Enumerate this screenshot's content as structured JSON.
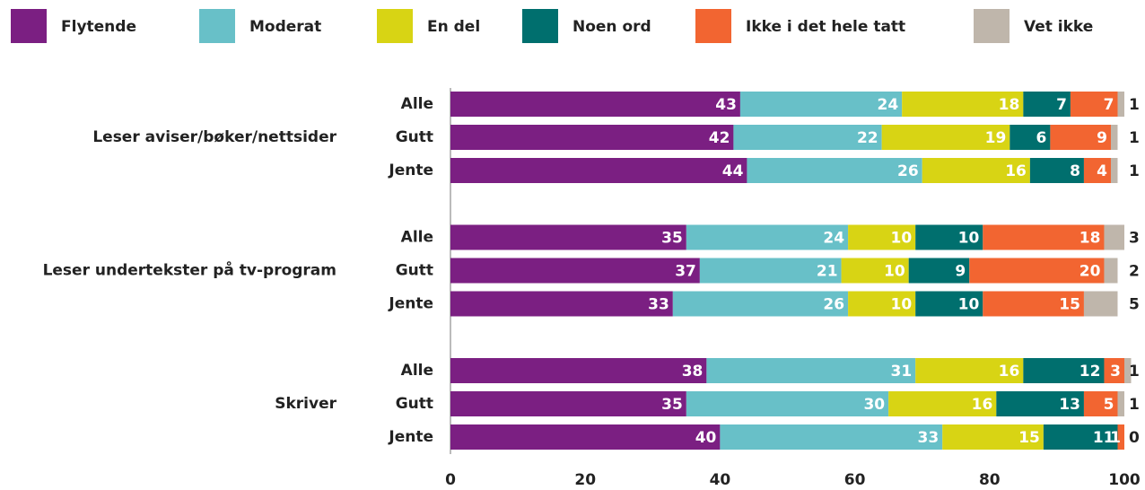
{
  "chart_data": {
    "type": "stacked_barh",
    "groups": [
      "Leser aviser/bøker/nettsider",
      "Leser undertekster på tv-program",
      "Skriver"
    ],
    "categories": [
      "Alle",
      "Gutt",
      "Jente",
      "Alle",
      "Gutt",
      "Jente",
      "Alle",
      "Gutt",
      "Jente"
    ],
    "series": [
      {
        "name": "Flytende",
        "color": "#7b1f82",
        "values": [
          43,
          42,
          44,
          35,
          37,
          33,
          38,
          35,
          40
        ]
      },
      {
        "name": "Moderat",
        "color": "#68c0c8",
        "values": [
          24,
          22,
          26,
          24,
          21,
          26,
          31,
          30,
          33
        ]
      },
      {
        "name": "En del",
        "color": "#d8d414",
        "values": [
          18,
          19,
          16,
          10,
          10,
          10,
          16,
          16,
          15
        ]
      },
      {
        "name": "Noen ord",
        "color": "#006f6e",
        "values": [
          7,
          6,
          8,
          10,
          9,
          10,
          12,
          13,
          11
        ]
      },
      {
        "name": "Ikke i det hele tatt",
        "color": "#f26531",
        "values": [
          7,
          9,
          4,
          18,
          20,
          15,
          3,
          5,
          1
        ]
      },
      {
        "name": "Vet ikke",
        "color": "#bfb6ab",
        "values": [
          1,
          1,
          1,
          3,
          2,
          5,
          1,
          1,
          0
        ]
      }
    ],
    "xlim": [
      0,
      100
    ],
    "xticks": [
      0,
      20,
      40,
      60,
      80,
      100
    ],
    "legend": "top"
  }
}
